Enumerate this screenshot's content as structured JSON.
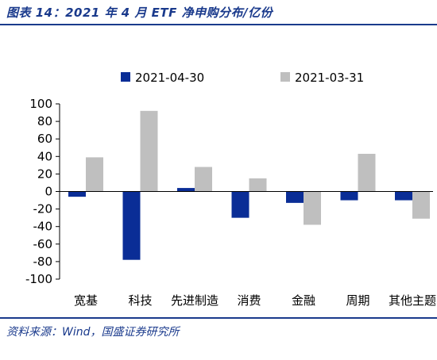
{
  "figure": {
    "title": "图表 14：2021 年 4 月 ETF 净申购分布/亿份",
    "source": "资料来源：Wind，国盛证券研究所"
  },
  "colors": {
    "title_blue": "#1a3a8c",
    "series_a": "#0a2d96",
    "series_b": "#bfbfbf"
  },
  "chart_data": {
    "type": "bar",
    "title": "",
    "xlabel": "",
    "ylabel": "",
    "categories": [
      "宽基",
      "科技",
      "先进制造",
      "消费",
      "金融",
      "周期",
      "其他主题"
    ],
    "series": [
      {
        "name": "2021-04-30",
        "values": [
          -6,
          -78,
          4,
          -30,
          -13,
          -10,
          -10
        ]
      },
      {
        "name": "2021-03-31",
        "values": [
          39,
          92,
          28,
          15,
          -38,
          43,
          -31
        ]
      }
    ],
    "ylim": [
      -100,
      100
    ],
    "yticks": [
      100,
      80,
      60,
      40,
      20,
      0,
      -20,
      -40,
      -60,
      -80,
      -100
    ],
    "ytick_labels": [
      "100",
      "80",
      "60",
      "40",
      "20",
      "0",
      "-20",
      "-40",
      "-60",
      "-80",
      "-100"
    ],
    "grid": false,
    "legend_position": "top-center"
  }
}
